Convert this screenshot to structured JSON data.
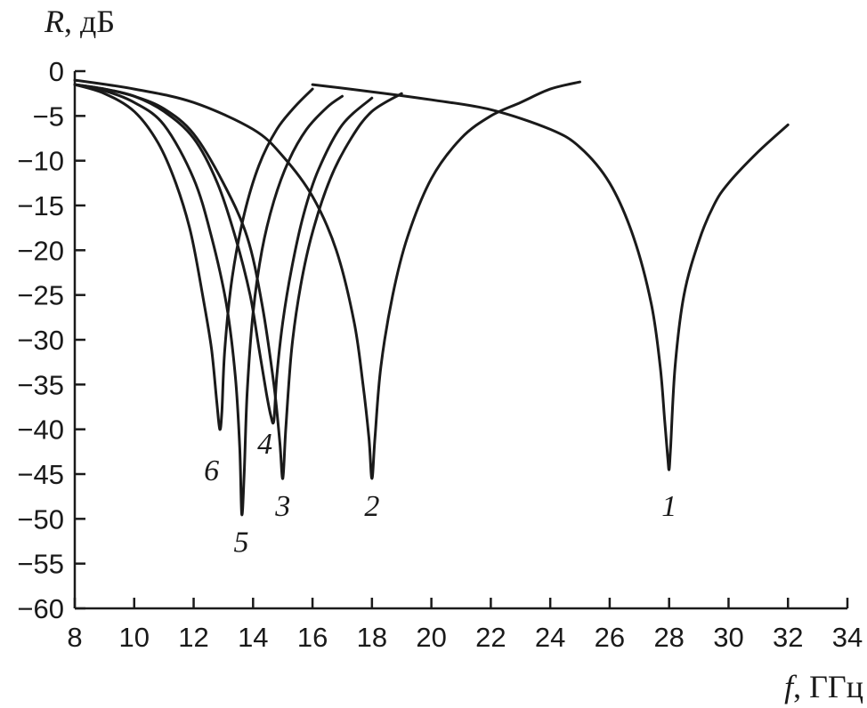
{
  "chart_data": {
    "type": "line",
    "ylabel": {
      "symbol": "R",
      "unit": ", дБ"
    },
    "xlabel": {
      "symbol": "f",
      "unit": ", ГГц"
    },
    "xlim": [
      8,
      34
    ],
    "ylim": [
      -60,
      0
    ],
    "xticks": [
      8,
      10,
      12,
      14,
      16,
      18,
      20,
      22,
      24,
      26,
      28,
      30,
      32,
      34
    ],
    "yticks": [
      0,
      -5,
      -10,
      -15,
      -20,
      -25,
      -30,
      -35,
      -40,
      -45,
      -50,
      -55,
      -60
    ],
    "grid": false,
    "series": [
      {
        "name": "1",
        "label_pos": [
          28,
          -48.5
        ],
        "x": [
          16,
          18,
          20,
          22,
          24,
          25,
          26,
          26.8,
          27.4,
          27.7,
          27.85,
          27.95,
          28,
          28.05,
          28.2,
          28.5,
          29,
          29.5,
          30,
          31,
          32
        ],
        "y": [
          -1.5,
          -2.3,
          -3.2,
          -4.3,
          -6.5,
          -8.5,
          -12.5,
          -18.5,
          -26,
          -33,
          -39,
          -43,
          -44.5,
          -42,
          -33,
          -25,
          -19,
          -15,
          -12.5,
          -9,
          -6
        ]
      },
      {
        "name": "2",
        "label_pos": [
          18,
          -48.5
        ],
        "x": [
          8,
          10,
          12,
          14,
          15,
          16,
          16.8,
          17.4,
          17.7,
          17.9,
          18,
          18.1,
          18.3,
          18.7,
          19.2,
          20,
          21,
          22,
          23,
          24,
          25
        ],
        "y": [
          -1,
          -2,
          -3.5,
          -6.5,
          -9.5,
          -14,
          -20,
          -28,
          -35,
          -41,
          -45.5,
          -41,
          -33,
          -25,
          -18.5,
          -12,
          -7.5,
          -5,
          -3.5,
          -2,
          -1.2
        ]
      },
      {
        "name": "3",
        "label_pos": [
          15,
          -48.5
        ],
        "x": [
          8,
          9,
          10,
          11,
          12,
          13,
          13.8,
          14.3,
          14.7,
          14.9,
          15,
          15.1,
          15.3,
          15.6,
          16,
          16.6,
          17.3,
          18,
          19
        ],
        "y": [
          -1.5,
          -2,
          -2.8,
          -4.2,
          -7,
          -12.5,
          -18.5,
          -26,
          -35,
          -41.5,
          -45.5,
          -40,
          -31,
          -24,
          -18,
          -12,
          -7.5,
          -4.5,
          -2.5
        ]
      },
      {
        "name": "4",
        "label_pos": [
          14.4,
          -41.5
        ],
        "x": [
          8,
          9,
          10,
          11,
          12,
          12.8,
          13.4,
          13.9,
          14.2,
          14.45,
          14.6,
          14.7,
          14.8,
          15,
          15.3,
          15.7,
          16.2,
          17,
          18
        ],
        "y": [
          -1.5,
          -2,
          -2.8,
          -4.5,
          -7.5,
          -12.5,
          -18.5,
          -25,
          -31,
          -36,
          -38.5,
          -39,
          -34,
          -28,
          -22,
          -16,
          -11,
          -6,
          -3
        ]
      },
      {
        "name": "5",
        "label_pos": [
          13.6,
          -52.5
        ],
        "x": [
          8,
          9,
          10,
          11,
          12,
          12.6,
          13.1,
          13.4,
          13.55,
          13.62,
          13.7,
          13.8,
          14,
          14.3,
          14.7,
          15.2,
          15.8,
          16.5,
          17
        ],
        "y": [
          -1.5,
          -2.2,
          -3.5,
          -6,
          -12,
          -18.5,
          -26,
          -34,
          -42,
          -49.5,
          -45,
          -36,
          -27,
          -20,
          -14.5,
          -10,
          -6.5,
          -4,
          -2.8
        ]
      },
      {
        "name": "6",
        "label_pos": [
          12.6,
          -44.5
        ],
        "x": [
          8,
          9,
          10,
          10.8,
          11.4,
          11.9,
          12.3,
          12.6,
          12.78,
          12.88,
          12.95,
          13.05,
          13.3,
          13.7,
          14.2,
          14.8,
          15.4,
          16
        ],
        "y": [
          -1.5,
          -2.5,
          -4.5,
          -8,
          -12.5,
          -18,
          -25,
          -31,
          -37,
          -40,
          -38,
          -31,
          -23,
          -16,
          -10.5,
          -6.5,
          -4,
          -2
        ]
      }
    ]
  }
}
